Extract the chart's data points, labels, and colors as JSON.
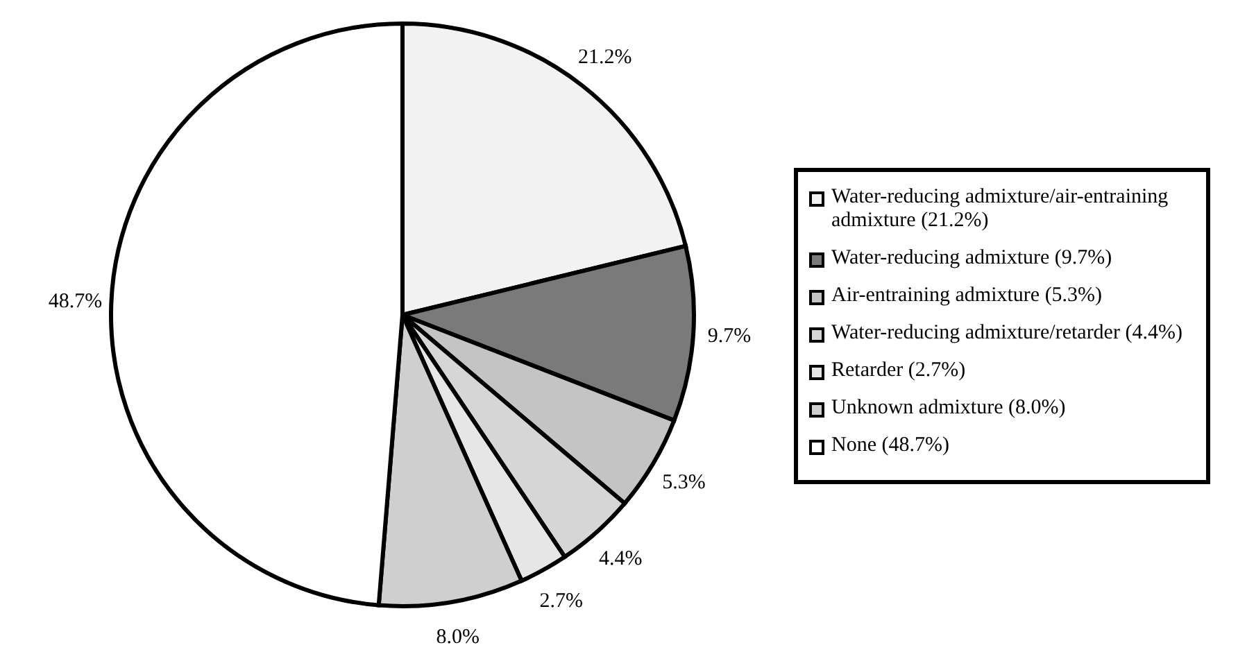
{
  "chart_data": {
    "type": "pie",
    "categories": [
      "Water-reducing admixture/air-entraining admixture (21.2%)",
      "Water-reducing admixture (9.7%)",
      "Air-entraining admixture (5.3%)",
      "Water-reducing admixture/retarder (4.4%)",
      "Retarder (2.7%)",
      "Unknown admixture (8.0%)",
      "None (48.7%)"
    ],
    "values": [
      21.2,
      9.7,
      5.3,
      4.4,
      2.7,
      8.0,
      48.7
    ],
    "value_labels": [
      "21.2%",
      "9.7%",
      "5.3%",
      "4.4%",
      "2.7%",
      "8.0%",
      "48.7%"
    ],
    "colors": [
      "#f2f2f2",
      "#7a7a7a",
      "#c4c4c4",
      "#d6d6d6",
      "#e6e6e6",
      "#cfcfcf",
      "#ffffff"
    ],
    "legend": "right"
  }
}
